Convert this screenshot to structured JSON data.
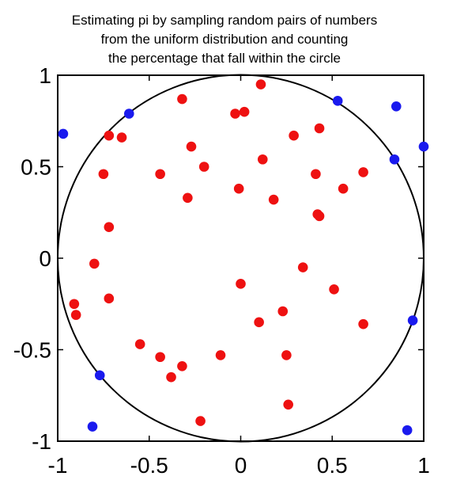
{
  "chart_data": {
    "type": "scatter",
    "title_lines": [
      "Estimating pi by sampling random pairs of numbers",
      "from the uniform distribution and counting",
      "the percentage that fall within the circle"
    ],
    "xlim": [
      -1,
      1
    ],
    "ylim": [
      -1,
      1
    ],
    "x_ticks": [
      -1,
      -0.5,
      0,
      0.5,
      1
    ],
    "y_ticks": [
      1,
      0.5,
      0,
      -0.5,
      -1
    ],
    "x_tick_labels": [
      "-1",
      "-0.5",
      "0",
      "0.5",
      "1"
    ],
    "y_tick_labels": [
      "1",
      "0.5",
      "0",
      "-0.5",
      "-1"
    ],
    "grid": false,
    "circle": {
      "center": [
        0,
        0
      ],
      "radius": 1,
      "color": "#000000"
    },
    "series": [
      {
        "color": "#ee1111",
        "points": [
          [
            0.11,
            0.95
          ],
          [
            -0.32,
            0.87
          ],
          [
            -0.03,
            0.79
          ],
          [
            0.02,
            0.8
          ],
          [
            -0.72,
            0.67
          ],
          [
            -0.65,
            0.66
          ],
          [
            -0.27,
            0.61
          ],
          [
            0.29,
            0.67
          ],
          [
            0.43,
            0.71
          ],
          [
            0.12,
            0.54
          ],
          [
            -0.75,
            0.46
          ],
          [
            -0.44,
            0.46
          ],
          [
            -0.2,
            0.5
          ],
          [
            0.41,
            0.46
          ],
          [
            0.67,
            0.47
          ],
          [
            -0.01,
            0.38
          ],
          [
            0.56,
            0.38
          ],
          [
            -0.29,
            0.33
          ],
          [
            0.18,
            0.32
          ],
          [
            0.42,
            0.24
          ],
          [
            0.43,
            0.23
          ],
          [
            -0.72,
            0.17
          ],
          [
            -0.8,
            -0.03
          ],
          [
            0.34,
            -0.05
          ],
          [
            0.0,
            -0.14
          ],
          [
            0.51,
            -0.17
          ],
          [
            -0.72,
            -0.22
          ],
          [
            -0.91,
            -0.25
          ],
          [
            -0.9,
            -0.31
          ],
          [
            0.23,
            -0.29
          ],
          [
            0.1,
            -0.35
          ],
          [
            0.67,
            -0.36
          ],
          [
            -0.55,
            -0.47
          ],
          [
            -0.44,
            -0.54
          ],
          [
            -0.11,
            -0.53
          ],
          [
            0.25,
            -0.53
          ],
          [
            -0.32,
            -0.59
          ],
          [
            -0.38,
            -0.65
          ],
          [
            0.26,
            -0.8
          ],
          [
            -0.22,
            -0.89
          ]
        ]
      },
      {
        "color": "#1a1aee",
        "points": [
          [
            -0.97,
            0.68
          ],
          [
            -0.61,
            0.79
          ],
          [
            0.53,
            0.86
          ],
          [
            0.85,
            0.83
          ],
          [
            1.0,
            0.61
          ],
          [
            0.84,
            0.54
          ],
          [
            0.94,
            -0.34
          ],
          [
            -0.77,
            -0.64
          ],
          [
            -0.81,
            -0.92
          ],
          [
            0.91,
            -0.94
          ]
        ]
      }
    ]
  }
}
